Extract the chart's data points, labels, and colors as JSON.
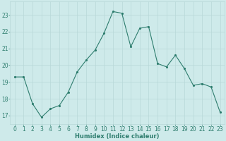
{
  "x": [
    0,
    1,
    2,
    3,
    4,
    5,
    6,
    7,
    8,
    9,
    10,
    11,
    12,
    13,
    14,
    15,
    16,
    17,
    18,
    19,
    20,
    21,
    22,
    23
  ],
  "y": [
    19.3,
    19.3,
    17.7,
    16.9,
    17.4,
    17.6,
    18.4,
    19.6,
    20.3,
    20.9,
    21.9,
    23.2,
    23.1,
    21.1,
    22.2,
    22.3,
    20.1,
    19.9,
    20.6,
    19.8,
    18.8,
    18.9,
    18.7,
    17.2
  ],
  "line_color": "#2e7d6e",
  "marker_color": "#2e7d6e",
  "bg_color": "#ceeaea",
  "grid_color": "#b8d8d8",
  "xlabel": "Humidex (Indice chaleur)",
  "ylim": [
    16.5,
    23.8
  ],
  "xlim": [
    -0.5,
    23.5
  ],
  "yticks": [
    17,
    18,
    19,
    20,
    21,
    22,
    23
  ],
  "xticks": [
    0,
    1,
    2,
    3,
    4,
    5,
    6,
    7,
    8,
    9,
    10,
    11,
    12,
    13,
    14,
    15,
    16,
    17,
    18,
    19,
    20,
    21,
    22,
    23
  ],
  "font_color": "#2e7d6e",
  "label_fontsize": 6.0,
  "tick_fontsize": 5.5
}
